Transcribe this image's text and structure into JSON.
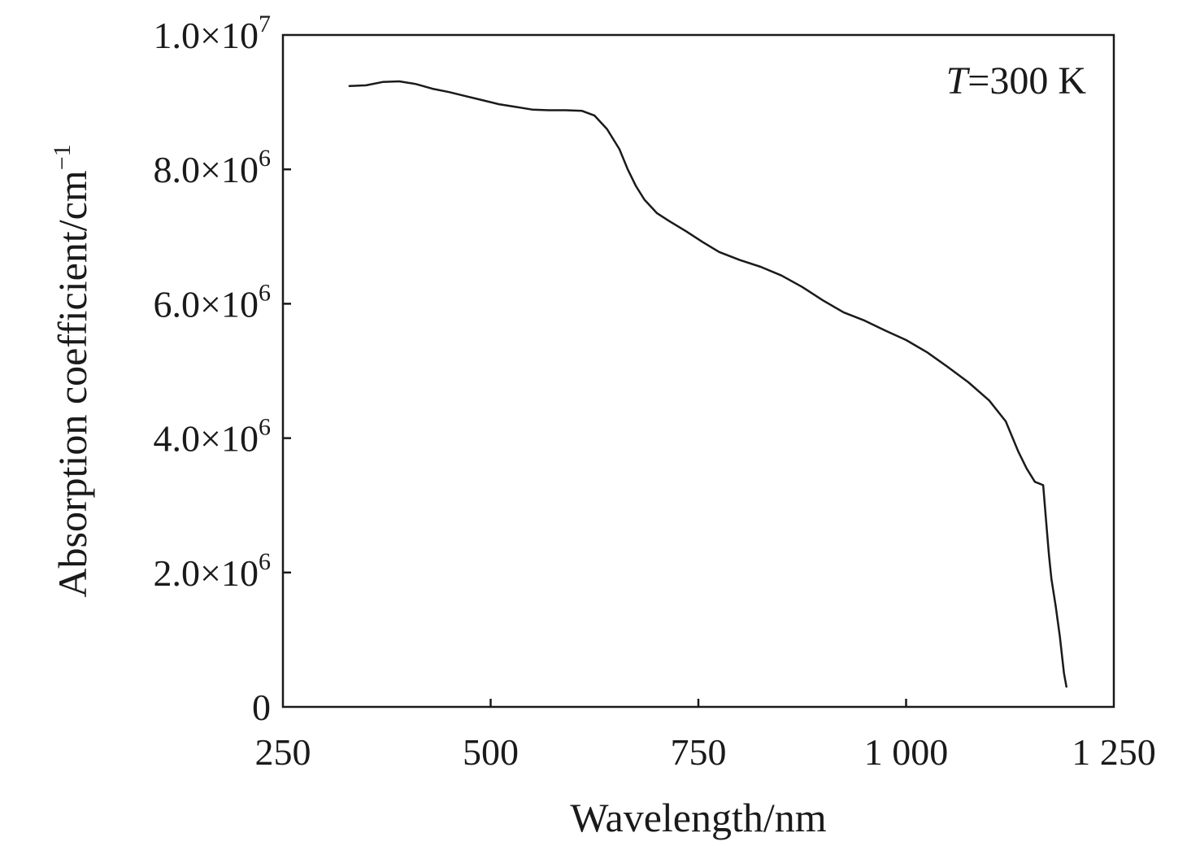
{
  "chart_data": {
    "type": "line",
    "xlabel": "Wavelength/nm",
    "ylabel": "Absorption coefficient/cm",
    "ylabel_sup": "−1",
    "xlim": [
      250,
      1250
    ],
    "ylim": [
      0,
      10000000
    ],
    "xticks": [
      {
        "value": 250,
        "label": "250"
      },
      {
        "value": 500,
        "label": "500"
      },
      {
        "value": 750,
        "label": "750"
      },
      {
        "value": 1000,
        "label": "1 000"
      },
      {
        "value": 1250,
        "label": "1 250"
      }
    ],
    "yticks": [
      {
        "value": 0,
        "label": "0",
        "sup": ""
      },
      {
        "value": 2000000,
        "label": "2.0×10",
        "sup": "6"
      },
      {
        "value": 4000000,
        "label": "4.0×10",
        "sup": "6"
      },
      {
        "value": 6000000,
        "label": "6.0×10",
        "sup": "6"
      },
      {
        "value": 8000000,
        "label": "8.0×10",
        "sup": "6"
      },
      {
        "value": 10000000,
        "label": "1.0×10",
        "sup": "7"
      }
    ],
    "annotation": {
      "italic": "T",
      "text": "=300 K"
    },
    "grid": false,
    "line_color": "#1a1a1a",
    "series": [
      {
        "x": [
          330,
          350,
          370,
          390,
          410,
          430,
          450,
          470,
          490,
          510,
          530,
          550,
          570,
          590,
          610,
          625,
          640,
          655,
          665,
          675,
          685,
          700,
          715,
          735,
          755,
          775,
          800,
          825,
          850,
          875,
          900,
          925,
          950,
          975,
          1000,
          1025,
          1050,
          1075,
          1100,
          1120,
          1135,
          1145,
          1155,
          1165,
          1170,
          1172,
          1175,
          1180,
          1185,
          1190,
          1193
        ],
        "y": [
          9240000,
          9250000,
          9300000,
          9310000,
          9270000,
          9200000,
          9150000,
          9090000,
          9030000,
          8970000,
          8930000,
          8890000,
          8880000,
          8880000,
          8870000,
          8800000,
          8600000,
          8300000,
          8000000,
          7750000,
          7550000,
          7350000,
          7230000,
          7080000,
          6920000,
          6770000,
          6650000,
          6550000,
          6420000,
          6250000,
          6050000,
          5870000,
          5750000,
          5600000,
          5460000,
          5280000,
          5060000,
          4830000,
          4560000,
          4250000,
          3800000,
          3550000,
          3350000,
          3300000,
          2550000,
          2250000,
          1900000,
          1500000,
          1050000,
          500000,
          300000
        ]
      }
    ]
  }
}
